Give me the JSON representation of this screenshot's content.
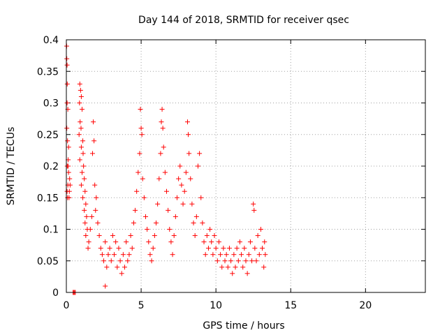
{
  "chart_data": {
    "type": "scatter",
    "title": "Day 144 of 2018, SRMTID for receiver qsec",
    "xlabel": "GPS time / hours",
    "ylabel": "SRMTID / TECUs",
    "xlim": [
      0,
      24
    ],
    "ylim": [
      0,
      0.4
    ],
    "x_ticks": [
      0,
      5,
      10,
      15,
      20
    ],
    "x_tick_labels": [
      "0",
      "5",
      "10",
      "15",
      "20"
    ],
    "y_ticks": [
      0,
      0.05,
      0.1,
      0.15,
      0.2,
      0.25,
      0.3,
      0.35,
      0.4
    ],
    "y_tick_labels": [
      "0",
      "0.05",
      "0.1",
      "0.15",
      "0.2",
      "0.25",
      "0.3",
      "0.35",
      "0.4"
    ],
    "grid": true,
    "marker": "plus",
    "colors": {
      "series": "#ff0000",
      "grid": "#a0a0a0"
    },
    "series": [
      {
        "points": [
          [
            0.02,
            0.39
          ],
          [
            0.03,
            0.37
          ],
          [
            0.05,
            0.36
          ],
          [
            0.06,
            0.33
          ],
          [
            0.05,
            0.3
          ],
          [
            0.1,
            0.29
          ],
          [
            0.03,
            0.26
          ],
          [
            0.08,
            0.24
          ],
          [
            0.12,
            0.21
          ],
          [
            0.06,
            0.2
          ],
          [
            0.15,
            0.19
          ],
          [
            0.1,
            0.17
          ],
          [
            0.05,
            0.16
          ],
          [
            0.18,
            0.15
          ],
          [
            0.08,
            0.15
          ],
          [
            0.12,
            0.2
          ],
          [
            0.2,
            0.16
          ],
          [
            0.22,
            0.18
          ],
          [
            0.15,
            0.23
          ],
          [
            0.25,
            0.17
          ],
          [
            0.45,
            0.0
          ],
          [
            0.5,
            0.0
          ],
          [
            0.55,
            0.0
          ],
          [
            0.6,
            0.0
          ],
          [
            0.9,
            0.33
          ],
          [
            0.95,
            0.32
          ],
          [
            1.0,
            0.31
          ],
          [
            0.88,
            0.3
          ],
          [
            1.05,
            0.29
          ],
          [
            0.92,
            0.27
          ],
          [
            0.98,
            0.26
          ],
          [
            0.85,
            0.25
          ],
          [
            1.1,
            0.24
          ],
          [
            1.0,
            0.23
          ],
          [
            1.12,
            0.22
          ],
          [
            0.9,
            0.21
          ],
          [
            1.15,
            0.2
          ],
          [
            1.05,
            0.19
          ],
          [
            1.2,
            0.18
          ],
          [
            1.0,
            0.17
          ],
          [
            1.25,
            0.16
          ],
          [
            1.1,
            0.15
          ],
          [
            1.3,
            0.14
          ],
          [
            1.2,
            0.13
          ],
          [
            1.35,
            0.12
          ],
          [
            1.25,
            0.11
          ],
          [
            1.4,
            0.1
          ],
          [
            1.3,
            0.09
          ],
          [
            1.5,
            0.08
          ],
          [
            1.45,
            0.07
          ],
          [
            1.6,
            0.1
          ],
          [
            1.7,
            0.12
          ],
          [
            1.8,
            0.27
          ],
          [
            1.75,
            0.22
          ],
          [
            1.85,
            0.24
          ],
          [
            1.9,
            0.17
          ],
          [
            2.0,
            0.15
          ],
          [
            1.95,
            0.13
          ],
          [
            2.1,
            0.11
          ],
          [
            2.2,
            0.09
          ],
          [
            2.3,
            0.07
          ],
          [
            2.4,
            0.06
          ],
          [
            2.5,
            0.05
          ],
          [
            2.6,
            0.08
          ],
          [
            2.7,
            0.04
          ],
          [
            2.8,
            0.06
          ],
          [
            2.6,
            0.01
          ],
          [
            2.9,
            0.07
          ],
          [
            3.0,
            0.05
          ],
          [
            3.1,
            0.09
          ],
          [
            3.2,
            0.06
          ],
          [
            3.3,
            0.08
          ],
          [
            3.4,
            0.04
          ],
          [
            3.5,
            0.07
          ],
          [
            3.6,
            0.05
          ],
          [
            3.7,
            0.03
          ],
          [
            3.8,
            0.06
          ],
          [
            3.9,
            0.04
          ],
          [
            4.0,
            0.08
          ],
          [
            4.1,
            0.05
          ],
          [
            4.2,
            0.06
          ],
          [
            4.3,
            0.09
          ],
          [
            4.4,
            0.07
          ],
          [
            4.5,
            0.11
          ],
          [
            4.6,
            0.13
          ],
          [
            4.7,
            0.16
          ],
          [
            4.8,
            0.19
          ],
          [
            4.9,
            0.22
          ],
          [
            4.95,
            0.29
          ],
          [
            5.0,
            0.26
          ],
          [
            5.05,
            0.25
          ],
          [
            5.1,
            0.18
          ],
          [
            5.2,
            0.15
          ],
          [
            5.3,
            0.12
          ],
          [
            5.4,
            0.1
          ],
          [
            5.5,
            0.08
          ],
          [
            5.6,
            0.06
          ],
          [
            5.7,
            0.05
          ],
          [
            5.8,
            0.07
          ],
          [
            5.9,
            0.09
          ],
          [
            6.0,
            0.11
          ],
          [
            6.1,
            0.14
          ],
          [
            6.2,
            0.18
          ],
          [
            6.3,
            0.22
          ],
          [
            6.35,
            0.27
          ],
          [
            6.4,
            0.29
          ],
          [
            6.45,
            0.26
          ],
          [
            6.5,
            0.23
          ],
          [
            6.6,
            0.19
          ],
          [
            6.7,
            0.16
          ],
          [
            6.8,
            0.13
          ],
          [
            6.9,
            0.1
          ],
          [
            7.0,
            0.08
          ],
          [
            7.1,
            0.06
          ],
          [
            7.2,
            0.09
          ],
          [
            7.3,
            0.12
          ],
          [
            7.4,
            0.15
          ],
          [
            7.5,
            0.18
          ],
          [
            7.6,
            0.2
          ],
          [
            7.7,
            0.17
          ],
          [
            7.8,
            0.14
          ],
          [
            7.9,
            0.16
          ],
          [
            8.0,
            0.19
          ],
          [
            8.1,
            0.27
          ],
          [
            8.15,
            0.25
          ],
          [
            8.2,
            0.22
          ],
          [
            8.3,
            0.18
          ],
          [
            8.4,
            0.14
          ],
          [
            8.5,
            0.11
          ],
          [
            8.6,
            0.09
          ],
          [
            8.7,
            0.12
          ],
          [
            8.8,
            0.2
          ],
          [
            8.9,
            0.22
          ],
          [
            9.0,
            0.15
          ],
          [
            9.1,
            0.11
          ],
          [
            9.2,
            0.08
          ],
          [
            9.3,
            0.06
          ],
          [
            9.4,
            0.09
          ],
          [
            9.5,
            0.07
          ],
          [
            9.6,
            0.1
          ],
          [
            9.7,
            0.08
          ],
          [
            9.8,
            0.06
          ],
          [
            9.9,
            0.09
          ],
          [
            10.0,
            0.07
          ],
          [
            10.1,
            0.05
          ],
          [
            10.2,
            0.08
          ],
          [
            10.3,
            0.06
          ],
          [
            10.4,
            0.04
          ],
          [
            10.5,
            0.07
          ],
          [
            10.6,
            0.05
          ],
          [
            10.7,
            0.06
          ],
          [
            10.8,
            0.04
          ],
          [
            10.9,
            0.07
          ],
          [
            11.0,
            0.05
          ],
          [
            11.1,
            0.03
          ],
          [
            11.2,
            0.06
          ],
          [
            11.3,
            0.04
          ],
          [
            11.4,
            0.07
          ],
          [
            11.5,
            0.05
          ],
          [
            11.6,
            0.08
          ],
          [
            11.7,
            0.06
          ],
          [
            11.8,
            0.04
          ],
          [
            11.9,
            0.07
          ],
          [
            12.0,
            0.05
          ],
          [
            12.1,
            0.03
          ],
          [
            12.2,
            0.06
          ],
          [
            12.3,
            0.08
          ],
          [
            12.4,
            0.05
          ],
          [
            12.5,
            0.14
          ],
          [
            12.55,
            0.13
          ],
          [
            12.6,
            0.07
          ],
          [
            12.7,
            0.05
          ],
          [
            12.8,
            0.09
          ],
          [
            12.9,
            0.06
          ],
          [
            13.0,
            0.1
          ],
          [
            13.1,
            0.07
          ],
          [
            13.2,
            0.04
          ],
          [
            13.25,
            0.08
          ],
          [
            13.3,
            0.06
          ]
        ]
      }
    ]
  }
}
